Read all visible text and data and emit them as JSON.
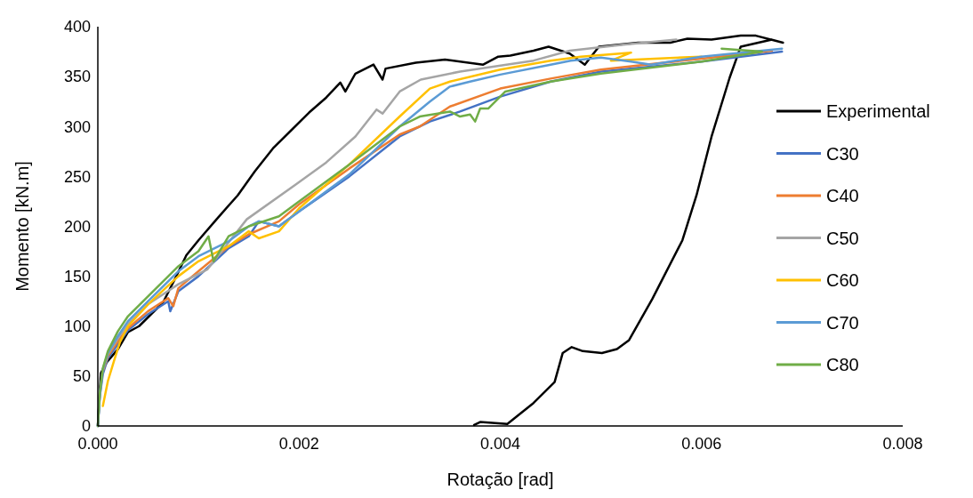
{
  "chart_data": {
    "type": "line",
    "xlabel": "Rotação [rad]",
    "ylabel": "Momento [kN.m]",
    "xlim": [
      0,
      0.008
    ],
    "xticks": [
      {
        "value": 0,
        "label": "0.000"
      },
      {
        "value": 0.002,
        "label": "0.002"
      },
      {
        "value": 0.004,
        "label": "0.004"
      },
      {
        "value": 0.006,
        "label": "0.006"
      },
      {
        "value": 0.008,
        "label": "0.008"
      }
    ],
    "ylim": [
      0,
      400
    ],
    "yticks": [
      0,
      50,
      100,
      150,
      200,
      250,
      300,
      350,
      400
    ],
    "grid": false,
    "legend": "right",
    "line_style": "solid",
    "marker": "none",
    "series": [
      {
        "name": "Experimental",
        "color": "#000000",
        "x": [
          0,
          3e-05,
          9e-05,
          0.0002,
          0.0003,
          0.00041,
          0.00065,
          0.00077,
          0.00088,
          0.001,
          0.00118,
          0.00139,
          0.00156,
          0.00174,
          0.00192,
          0.0021,
          0.00227,
          0.00241,
          0.00246,
          0.00256,
          0.00274,
          0.00283,
          0.00286,
          0.00316,
          0.00345,
          0.00383,
          0.00398,
          0.0041,
          0.00433,
          0.00448,
          0.00469,
          0.00484,
          0.00498,
          0.00537,
          0.00569,
          0.00586,
          0.0061,
          0.00639,
          0.00654,
          0.00681,
          0.0067,
          0.00639,
          0.00628,
          0.0061,
          0.00595,
          0.00581,
          0.00551,
          0.00528,
          0.00516,
          0.00501,
          0.00482,
          0.00471,
          0.00462,
          0.00454,
          0.00433,
          0.00407,
          0.0038,
          0.00374
        ],
        "values": [
          0,
          53,
          64,
          77,
          94,
          100,
          124,
          148,
          171,
          186,
          207,
          231,
          255,
          278,
          296,
          314,
          329,
          344,
          335,
          353,
          362,
          347,
          358,
          364,
          367,
          362,
          370,
          371,
          376,
          380,
          373,
          362,
          380,
          384,
          384,
          388,
          387,
          391,
          391,
          384,
          387,
          380,
          349,
          290,
          231,
          186,
          127,
          86,
          77,
          73,
          75,
          79,
          73,
          44,
          23,
          2,
          4,
          1
        ]
      },
      {
        "name": "C30",
        "color": "#4472c4",
        "x": [
          0,
          2e-05,
          5e-05,
          0.0001,
          0.0002,
          0.0003,
          0.0005,
          0.0007,
          0.00072,
          0.0008,
          0.001,
          0.0013,
          0.0015,
          0.0016,
          0.0018,
          0.002,
          0.0025,
          0.003,
          0.0033,
          0.0036,
          0.004,
          0.0045,
          0.005,
          0.006,
          0.0068
        ],
        "values": [
          0,
          30,
          52,
          68,
          82,
          96,
          112,
          125,
          115,
          135,
          150,
          178,
          190,
          205,
          200,
          215,
          250,
          290,
          305,
          315,
          330,
          345,
          355,
          365,
          375
        ]
      },
      {
        "name": "C40",
        "color": "#ed7d31",
        "x": [
          5e-05,
          0.0001,
          0.0002,
          0.0003,
          0.0005,
          0.0007,
          0.00075,
          0.0008,
          0.001,
          0.0013,
          0.0015,
          0.0018,
          0.002,
          0.0025,
          0.003,
          0.0032,
          0.0035,
          0.004,
          0.0045,
          0.005,
          0.006,
          0.0067
        ],
        "values": [
          55,
          70,
          85,
          98,
          115,
          128,
          120,
          138,
          155,
          180,
          192,
          205,
          222,
          258,
          292,
          300,
          320,
          338,
          348,
          357,
          368,
          376
        ]
      },
      {
        "name": "C50",
        "color": "#a5a5a5",
        "x": [
          0,
          2e-05,
          5e-05,
          0.0001,
          0.0002,
          0.0003,
          0.0005,
          0.0008,
          0.00109,
          0.00148,
          0.00197,
          0.00227,
          0.00256,
          0.00277,
          0.00283,
          0.003,
          0.00321,
          0.0036,
          0.00433,
          0.00469,
          0.00522,
          0.00575
        ],
        "values": [
          0,
          32,
          56,
          72,
          88,
          102,
          122,
          142,
          157,
          207,
          242,
          264,
          290,
          317,
          313,
          335,
          347,
          355,
          366,
          376,
          382,
          387
        ]
      },
      {
        "name": "C60",
        "color": "#ffc000",
        "x": [
          5e-05,
          0.0001,
          0.00016,
          0.00022,
          0.0003,
          0.0005,
          0.0008,
          0.001,
          0.0013,
          0.0015,
          0.0016,
          0.0018,
          0.002,
          0.0025,
          0.003,
          0.0033,
          0.0035,
          0.004,
          0.0045,
          0.0048,
          0.0053,
          0.0051,
          0.006
        ],
        "values": [
          20,
          45,
          65,
          84,
          100,
          122,
          150,
          165,
          180,
          195,
          188,
          195,
          218,
          262,
          310,
          338,
          345,
          357,
          366,
          370,
          374,
          366,
          370
        ]
      },
      {
        "name": "C70",
        "color": "#5b9bd5",
        "x": [
          0,
          2e-05,
          5e-05,
          0.0001,
          0.0002,
          0.0003,
          0.0005,
          0.0008,
          0.001,
          0.0013,
          0.0015,
          0.0016,
          0.0018,
          0.002,
          0.0025,
          0.003,
          0.0033,
          0.0035,
          0.0037,
          0.004,
          0.0045,
          0.0047,
          0.005,
          0.0053,
          0.0055,
          0.006,
          0.0068
        ],
        "values": [
          0,
          32,
          57,
          73,
          90,
          105,
          125,
          155,
          170,
          185,
          200,
          205,
          200,
          215,
          252,
          300,
          325,
          340,
          345,
          352,
          362,
          366,
          369,
          365,
          362,
          370,
          378
        ]
      },
      {
        "name": "C80",
        "color": "#70ad47",
        "x": [
          0,
          2e-05,
          5e-05,
          0.0001,
          0.0002,
          0.0003,
          0.0005,
          0.0008,
          0.001,
          0.0011,
          0.00115,
          0.0013,
          0.0015,
          0.0018,
          0.002,
          0.0025,
          0.003,
          0.0032,
          0.0035,
          0.0036,
          0.0037,
          0.00375,
          0.0038,
          0.00388,
          0.00405,
          0.0045,
          0.005,
          0.006,
          0.0066,
          0.0062
        ],
        "values": [
          0,
          33,
          58,
          75,
          95,
          110,
          130,
          160,
          175,
          190,
          165,
          190,
          200,
          210,
          225,
          262,
          300,
          310,
          315,
          310,
          312,
          305,
          318,
          318,
          335,
          345,
          353,
          365,
          375,
          378
        ]
      }
    ]
  }
}
